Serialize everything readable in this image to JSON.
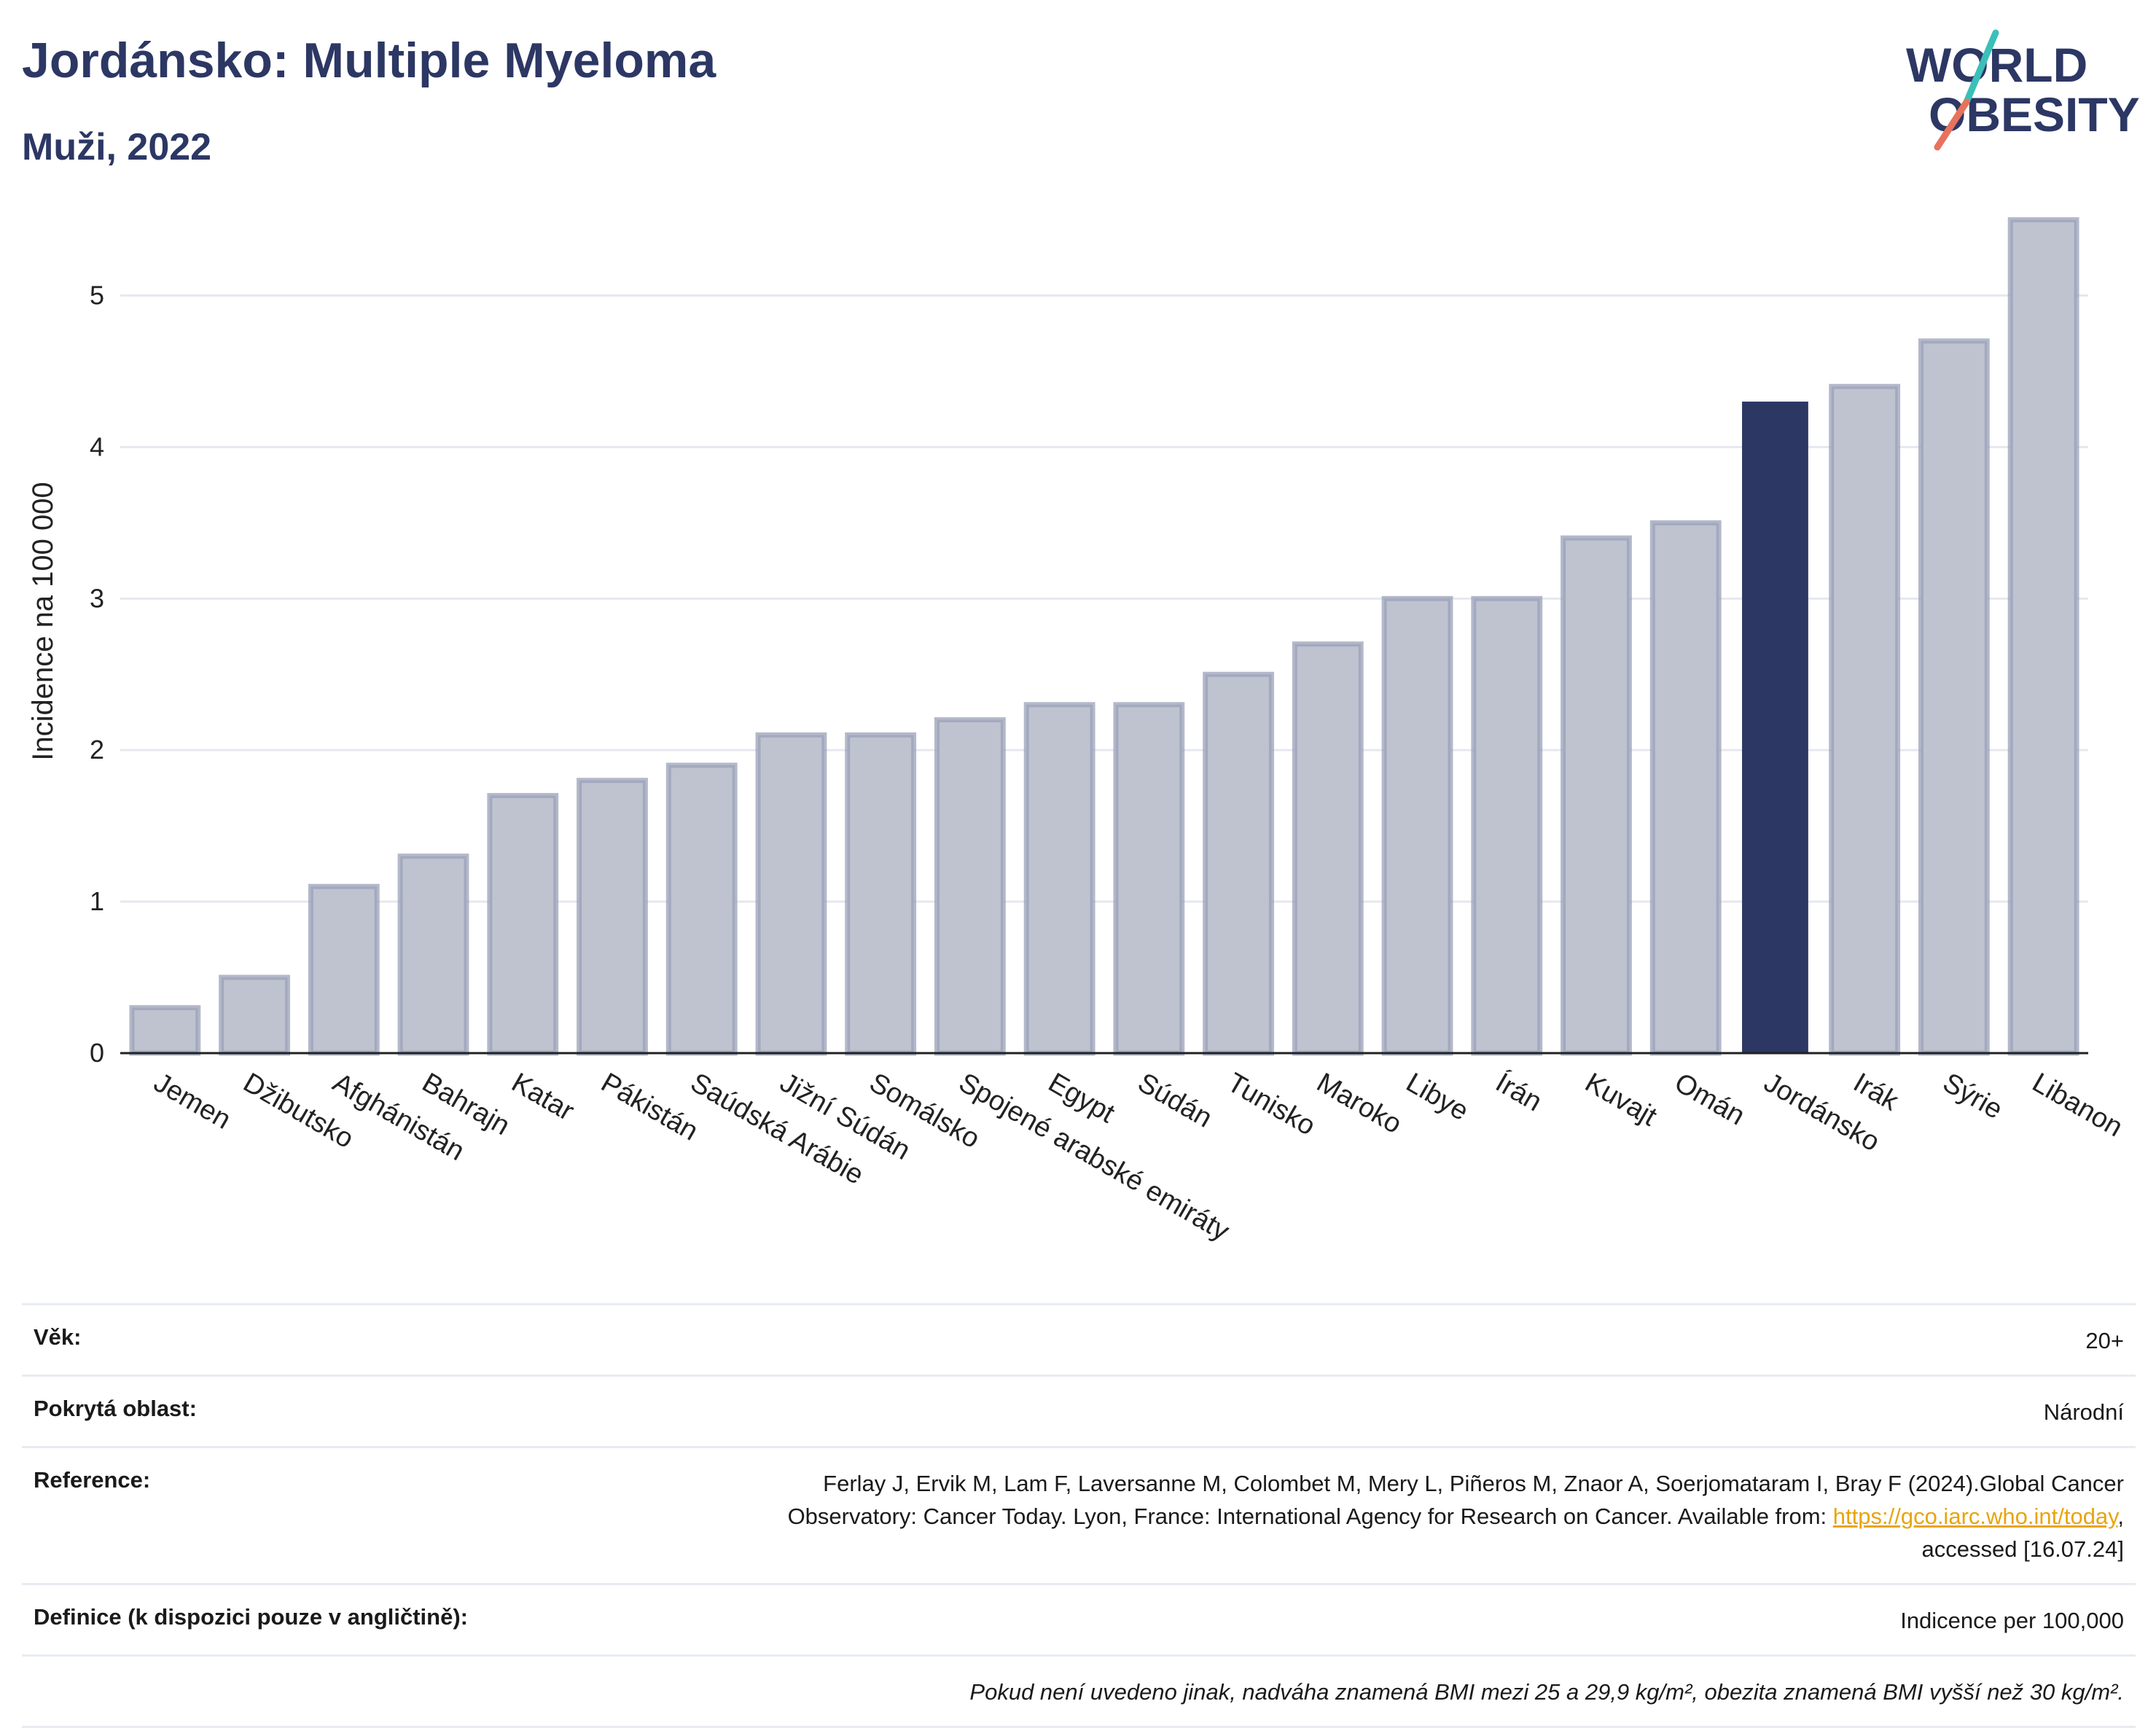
{
  "header": {
    "title": "Jordánsko: Multiple Myeloma",
    "subtitle": "Muži, 2022"
  },
  "logo": {
    "line1": "WORLD",
    "line2": "OBESITY"
  },
  "chart_data": {
    "type": "bar",
    "ylabel": "Incidence na 100 000",
    "xlabel": "",
    "ylim": [
      0,
      5.7
    ],
    "yticks": [
      0,
      1,
      2,
      3,
      4,
      5
    ],
    "grid": true,
    "categories": [
      "Jemen",
      "Džibutsko",
      "Afghánistán",
      "Bahrajn",
      "Katar",
      "Pákistán",
      "Saúdská Arábie",
      "Jižní Súdán",
      "Somálsko",
      "Spojené arabské emiráty",
      "Egypt",
      "Súdán",
      "Tunisko",
      "Maroko",
      "Libye",
      "Írán",
      "Kuvajt",
      "Omán",
      "Jordánsko",
      "Irák",
      "Sýrie",
      "Libanon"
    ],
    "values": [
      0.3,
      0.5,
      1.1,
      1.3,
      1.7,
      1.8,
      1.9,
      2.1,
      2.1,
      2.2,
      2.3,
      2.3,
      2.5,
      2.7,
      3.0,
      3.0,
      3.4,
      3.5,
      4.3,
      4.4,
      4.7,
      5.5
    ],
    "highlight": "Jordánsko",
    "colors": {
      "bar": "#bfc3d0",
      "bar_border": "#9aa0b8",
      "highlight": "#2c3764",
      "grid": "#e6e8ef"
    }
  },
  "info": {
    "age_label": "Věk:",
    "age_value": "20+",
    "coverage_label": "Pokrytá oblast:",
    "coverage_value": "Národní",
    "reference_label": "Reference:",
    "reference_line1": "Ferlay J, Ervik M, Lam F, Laversanne M, Colombet M, Mery L, Piñeros M, Znaor A, Soerjomataram I, Bray F (2024).Global Cancer",
    "reference_line2": "Observatory: Cancer Today. Lyon, France: International Agency for Research on Cancer. Available from: ",
    "reference_link": "https://gco.iarc.who.int/today",
    "reference_line2_end": ",",
    "reference_line3": "accessed [16.07.24]",
    "definition_label": "Definice (k dispozici pouze v angličtině):",
    "definition_value": "Indicence per 100,000",
    "note": "Pokud není uvedeno jinak, nadváha znamená BMI mezi 25 a 29,9 kg/m², obezita znamená BMI vyšší než 30 kg/m²."
  }
}
